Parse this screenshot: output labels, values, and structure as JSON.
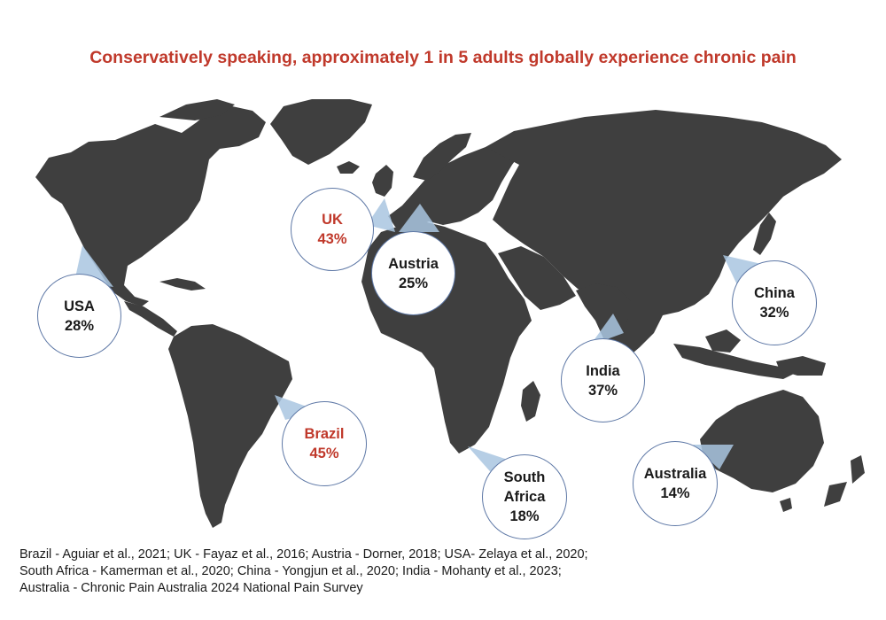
{
  "title": "Conservatively speaking, approximately 1 in 5 adults globally experience chronic pain",
  "colors": {
    "land": "#3f3f3f",
    "pointer": "#a9c6e0",
    "bubble_border": "#5e78a6",
    "highlight_text": "#c0392b",
    "text": "#1a1a1a"
  },
  "countries": [
    {
      "id": "usa",
      "name": "USA",
      "value": "28%",
      "highlight": false
    },
    {
      "id": "uk",
      "name": "UK",
      "value": "43%",
      "highlight": true
    },
    {
      "id": "austria",
      "name": "Austria",
      "value": "25%",
      "highlight": false
    },
    {
      "id": "china",
      "name": "China",
      "value": "32%",
      "highlight": false
    },
    {
      "id": "india",
      "name": "India",
      "value": "37%",
      "highlight": false
    },
    {
      "id": "brazil",
      "name": "Brazil",
      "value": "45%",
      "highlight": true
    },
    {
      "id": "south-africa",
      "name": "South Africa",
      "value": "18%",
      "highlight": false
    },
    {
      "id": "australia",
      "name": "Australia",
      "value": "14%",
      "highlight": false
    }
  ],
  "source": "Brazil - Aguiar et al., 2021; UK - Fayaz et al., 2016; Austria - Dorner, 2018; USA- Zelaya et al., 2020; South Africa - Kamerman et al., 2020; China - Yongjun et al., 2020; India - Mohanty et al., 2023; Australia - Chronic Pain Australia 2024 National Pain Survey"
}
